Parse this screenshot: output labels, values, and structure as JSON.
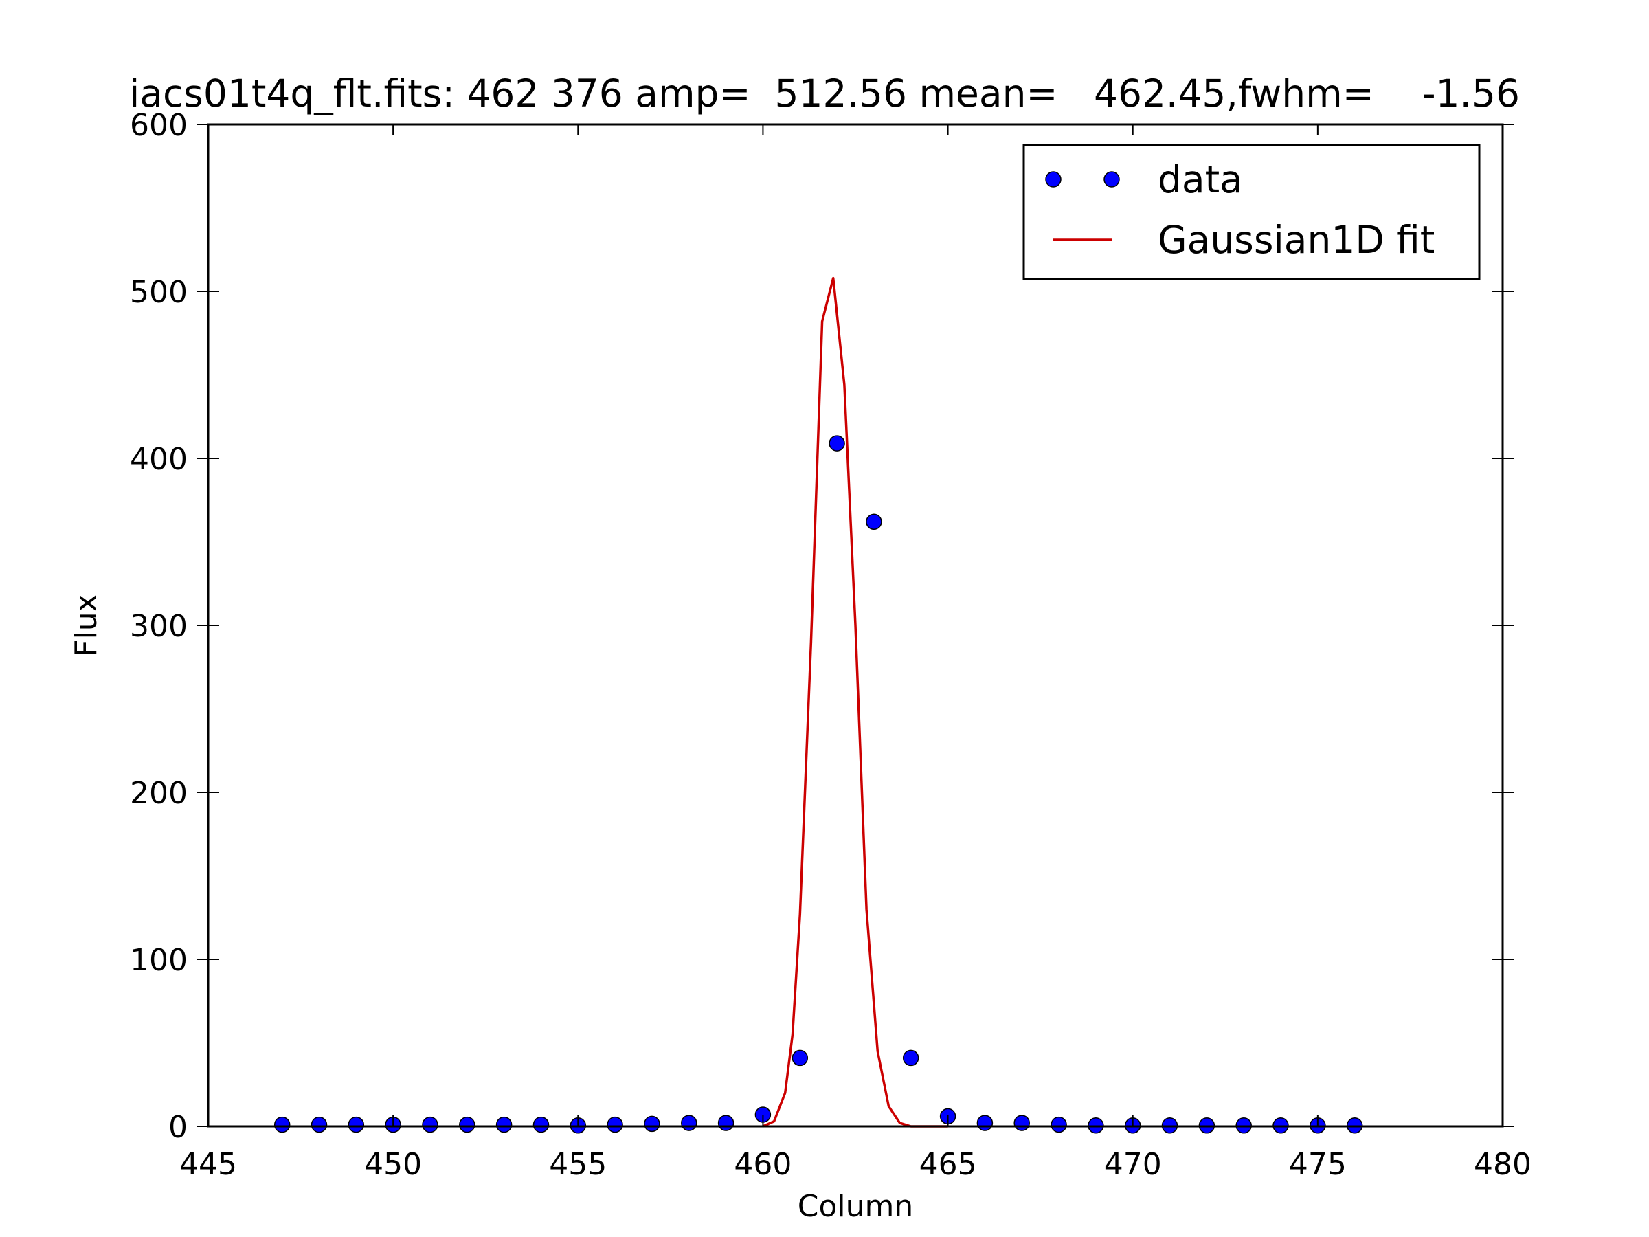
{
  "chart_data": {
    "type": "scatter",
    "title": "iacs01t4q_flt.fits: 462 376 amp=  512.56 mean=   462.45,fwhm=    -1.56",
    "xlabel": "Column",
    "ylabel": "Flux",
    "xlim": [
      445,
      480
    ],
    "ylim": [
      0,
      600
    ],
    "xticks": [
      445,
      450,
      455,
      460,
      465,
      470,
      475,
      480
    ],
    "yticks": [
      0,
      100,
      200,
      300,
      400,
      500,
      600
    ],
    "grid": false,
    "legend_position": "top-right",
    "series": [
      {
        "name": "data",
        "kind": "markers",
        "color": "#0000ff",
        "x": [
          447,
          448,
          449,
          450,
          451,
          452,
          453,
          454,
          455,
          456,
          457,
          458,
          459,
          460,
          461,
          462,
          463,
          464,
          465,
          466,
          467,
          468,
          469,
          470,
          471,
          472,
          473,
          474,
          475,
          476
        ],
        "y": [
          1,
          1,
          1,
          1,
          1,
          1,
          1,
          1,
          0.5,
          1,
          1.5,
          2,
          2,
          7,
          41,
          409,
          362,
          41,
          6,
          2,
          2,
          1,
          0.5,
          0.5,
          0.5,
          0.5,
          0.5,
          0.5,
          0.5,
          0.5
        ]
      },
      {
        "name": "Gaussian1D fit",
        "kind": "line",
        "color": "#cc0000",
        "x": [
          460,
          460.3,
          460.6,
          460.8,
          461,
          461.3,
          461.6,
          461.9,
          462.2,
          462.5,
          462.8,
          463.1,
          463.4,
          463.7,
          464,
          464.3,
          464.6,
          464.9,
          465
        ],
        "y": [
          0,
          3,
          20,
          55,
          127,
          290,
          482,
          508,
          444,
          300,
          130,
          45,
          12,
          2,
          0,
          0,
          0,
          0,
          0
        ]
      }
    ]
  }
}
